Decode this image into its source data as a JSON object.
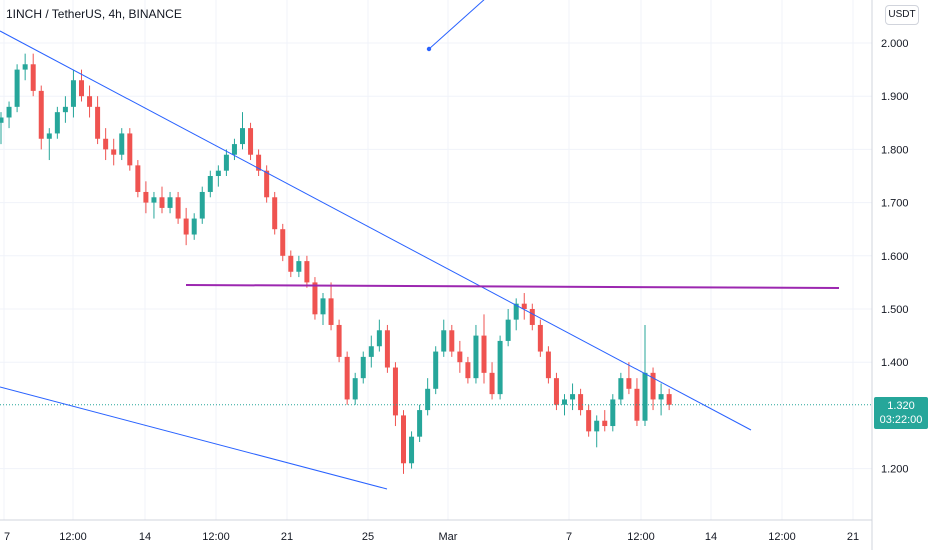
{
  "header": {
    "title": "1INCH / TetherUS, 4h, BINANCE"
  },
  "price_scale": {
    "currency": "USDT"
  },
  "last_price": {
    "value": "1.320",
    "countdown": "03:22:00"
  },
  "colors": {
    "up": "#26a69a",
    "down": "#ef5350",
    "trendline": "#2962ff",
    "support_line": "#9c27b0",
    "grid": "#f0f3fa"
  },
  "chart_data": {
    "type": "candlestick",
    "y_axis": {
      "ticks": [
        "2.000",
        "1.900",
        "1.800",
        "1.700",
        "1.600",
        "1.500",
        "1.400",
        "1.200"
      ],
      "range": [
        1.14,
        2.08
      ]
    },
    "x_axis": {
      "ticks": [
        "7",
        "12:00",
        "14",
        "12:00",
        "21",
        "25",
        "Mar",
        "7",
        "12:00",
        "14",
        "12:00",
        "21"
      ]
    },
    "candles_ohlc": [
      [
        1.85,
        1.87,
        1.81,
        1.86
      ],
      [
        1.86,
        1.89,
        1.84,
        1.88
      ],
      [
        1.88,
        1.96,
        1.87,
        1.95
      ],
      [
        1.95,
        1.98,
        1.93,
        1.96
      ],
      [
        1.96,
        1.98,
        1.9,
        1.91
      ],
      [
        1.91,
        1.92,
        1.8,
        1.82
      ],
      [
        1.82,
        1.84,
        1.78,
        1.83
      ],
      [
        1.83,
        1.88,
        1.82,
        1.87
      ],
      [
        1.87,
        1.9,
        1.85,
        1.88
      ],
      [
        1.88,
        1.95,
        1.86,
        1.93
      ],
      [
        1.93,
        1.95,
        1.89,
        1.9
      ],
      [
        1.9,
        1.92,
        1.86,
        1.88
      ],
      [
        1.88,
        1.9,
        1.81,
        1.82
      ],
      [
        1.82,
        1.84,
        1.78,
        1.8
      ],
      [
        1.8,
        1.82,
        1.77,
        1.79
      ],
      [
        1.79,
        1.84,
        1.78,
        1.83
      ],
      [
        1.83,
        1.84,
        1.76,
        1.77
      ],
      [
        1.77,
        1.78,
        1.71,
        1.72
      ],
      [
        1.72,
        1.74,
        1.68,
        1.7
      ],
      [
        1.7,
        1.72,
        1.67,
        1.71
      ],
      [
        1.71,
        1.73,
        1.68,
        1.69
      ],
      [
        1.69,
        1.72,
        1.68,
        1.71
      ],
      [
        1.71,
        1.72,
        1.66,
        1.67
      ],
      [
        1.67,
        1.69,
        1.62,
        1.64
      ],
      [
        1.64,
        1.68,
        1.63,
        1.67
      ],
      [
        1.67,
        1.73,
        1.66,
        1.72
      ],
      [
        1.72,
        1.76,
        1.71,
        1.75
      ],
      [
        1.75,
        1.77,
        1.73,
        1.76
      ],
      [
        1.76,
        1.8,
        1.75,
        1.79
      ],
      [
        1.79,
        1.82,
        1.78,
        1.81
      ],
      [
        1.81,
        1.87,
        1.8,
        1.84
      ],
      [
        1.84,
        1.85,
        1.78,
        1.79
      ],
      [
        1.79,
        1.8,
        1.75,
        1.76
      ],
      [
        1.76,
        1.77,
        1.7,
        1.71
      ],
      [
        1.71,
        1.72,
        1.64,
        1.65
      ],
      [
        1.65,
        1.66,
        1.59,
        1.6
      ],
      [
        1.6,
        1.61,
        1.56,
        1.57
      ],
      [
        1.57,
        1.6,
        1.56,
        1.59
      ],
      [
        1.59,
        1.6,
        1.54,
        1.55
      ],
      [
        1.55,
        1.56,
        1.48,
        1.49
      ],
      [
        1.49,
        1.53,
        1.47,
        1.52
      ],
      [
        1.52,
        1.55,
        1.46,
        1.47
      ],
      [
        1.47,
        1.48,
        1.4,
        1.41
      ],
      [
        1.41,
        1.42,
        1.32,
        1.33
      ],
      [
        1.33,
        1.38,
        1.32,
        1.37
      ],
      [
        1.37,
        1.42,
        1.36,
        1.41
      ],
      [
        1.41,
        1.45,
        1.39,
        1.43
      ],
      [
        1.43,
        1.48,
        1.42,
        1.46
      ],
      [
        1.46,
        1.47,
        1.38,
        1.39
      ],
      [
        1.39,
        1.4,
        1.28,
        1.3
      ],
      [
        1.3,
        1.31,
        1.19,
        1.21
      ],
      [
        1.21,
        1.27,
        1.2,
        1.26
      ],
      [
        1.26,
        1.32,
        1.25,
        1.31
      ],
      [
        1.31,
        1.37,
        1.3,
        1.35
      ],
      [
        1.35,
        1.43,
        1.34,
        1.42
      ],
      [
        1.42,
        1.48,
        1.41,
        1.46
      ],
      [
        1.46,
        1.47,
        1.41,
        1.42
      ],
      [
        1.42,
        1.44,
        1.38,
        1.4
      ],
      [
        1.4,
        1.41,
        1.36,
        1.37
      ],
      [
        1.37,
        1.47,
        1.36,
        1.45
      ],
      [
        1.45,
        1.49,
        1.36,
        1.38
      ],
      [
        1.38,
        1.4,
        1.33,
        1.34
      ],
      [
        1.34,
        1.45,
        1.33,
        1.44
      ],
      [
        1.44,
        1.5,
        1.43,
        1.48
      ],
      [
        1.48,
        1.52,
        1.46,
        1.51
      ],
      [
        1.51,
        1.53,
        1.48,
        1.5
      ],
      [
        1.5,
        1.51,
        1.46,
        1.47
      ],
      [
        1.47,
        1.48,
        1.41,
        1.42
      ],
      [
        1.42,
        1.43,
        1.36,
        1.37
      ],
      [
        1.37,
        1.38,
        1.31,
        1.32
      ],
      [
        1.32,
        1.34,
        1.3,
        1.33
      ],
      [
        1.33,
        1.36,
        1.31,
        1.34
      ],
      [
        1.34,
        1.35,
        1.3,
        1.31
      ],
      [
        1.31,
        1.32,
        1.26,
        1.27
      ],
      [
        1.27,
        1.3,
        1.24,
        1.29
      ],
      [
        1.29,
        1.31,
        1.27,
        1.28
      ],
      [
        1.28,
        1.34,
        1.27,
        1.33
      ],
      [
        1.33,
        1.38,
        1.32,
        1.37
      ],
      [
        1.37,
        1.4,
        1.34,
        1.35
      ],
      [
        1.35,
        1.37,
        1.28,
        1.29
      ],
      [
        1.29,
        1.47,
        1.28,
        1.38
      ],
      [
        1.38,
        1.39,
        1.31,
        1.33
      ],
      [
        1.33,
        1.36,
        1.3,
        1.34
      ],
      [
        1.34,
        1.35,
        1.31,
        1.32
      ]
    ]
  }
}
